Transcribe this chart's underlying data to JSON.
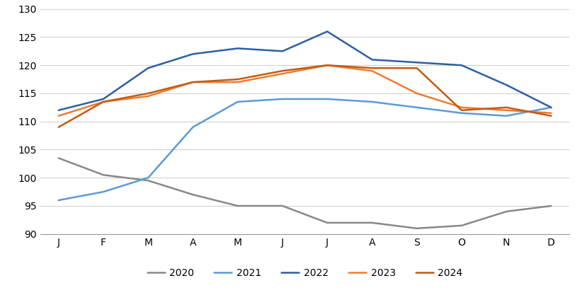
{
  "months": [
    "J",
    "F",
    "M",
    "A",
    "M",
    "J",
    "J",
    "A",
    "S",
    "O",
    "N",
    "D"
  ],
  "series": {
    "2020": [
      103.5,
      100.5,
      99.5,
      97.0,
      95.0,
      95.0,
      92.0,
      92.0,
      91.0,
      91.5,
      94.0,
      95.0
    ],
    "2021": [
      96.0,
      97.5,
      100.0,
      109.0,
      113.5,
      114.0,
      114.0,
      113.5,
      112.5,
      111.5,
      111.0,
      112.5
    ],
    "2022": [
      112.0,
      114.0,
      119.5,
      122.0,
      123.0,
      122.5,
      126.0,
      121.0,
      120.5,
      120.0,
      116.5,
      112.5
    ],
    "2023": [
      111.0,
      113.5,
      114.5,
      117.0,
      117.0,
      118.5,
      120.0,
      119.0,
      115.0,
      112.5,
      112.0,
      111.5
    ],
    "2024": [
      109.0,
      113.5,
      115.0,
      117.0,
      117.5,
      119.0,
      120.0,
      119.5,
      119.5,
      112.0,
      112.5,
      111.0
    ]
  },
  "colors": {
    "2020": "#888888",
    "2021": "#5B9BD5",
    "2022": "#2E5FA3",
    "2023": "#ED7D31",
    "2024": "#C55A11"
  },
  "ylim": [
    90,
    130
  ],
  "yticks": [
    90,
    95,
    100,
    105,
    110,
    115,
    120,
    125,
    130
  ],
  "background_color": "#ffffff",
  "grid_color": "#d0d0d0",
  "legend_order": [
    "2020",
    "2021",
    "2022",
    "2023",
    "2024"
  ]
}
